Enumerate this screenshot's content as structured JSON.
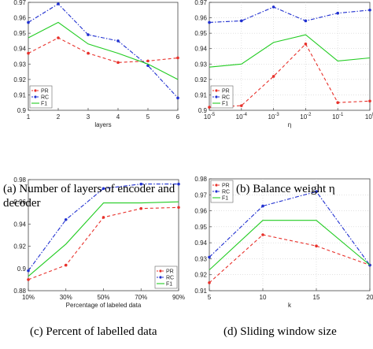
{
  "captions": [
    {
      "text": "(a) Number of layers of encoder and",
      "text2": "decoder"
    },
    {
      "text": "(b) Balance weight η",
      "text2": ""
    },
    {
      "text": "(c) Percent of labelled data",
      "text2": ""
    },
    {
      "text": "(d) Sliding window size",
      "text2": ""
    }
  ],
  "chart_data": [
    {
      "type": "line",
      "x": [
        1,
        2,
        3,
        4,
        5,
        6
      ],
      "xticks": [
        "1",
        "2",
        "3",
        "4",
        "5",
        "6"
      ],
      "xlabel": "layers",
      "ylim": [
        0.9,
        0.97
      ],
      "yticks": [
        "0.9",
        "0.91",
        "0.92",
        "0.93",
        "0.94",
        "0.95",
        "0.96",
        "0.97"
      ],
      "grid": false,
      "legend": "bottom-left",
      "series": [
        {
          "name": "PR",
          "color": "#e8302a",
          "dash": "dash",
          "marker": true,
          "values": [
            0.937,
            0.947,
            0.937,
            0.931,
            0.932,
            0.934
          ]
        },
        {
          "name": "RC",
          "color": "#1f2fd0",
          "dash": "dashdot",
          "marker": true,
          "values": [
            0.957,
            0.969,
            0.949,
            0.945,
            0.929,
            0.908
          ]
        },
        {
          "name": "F1",
          "color": "#22cc22",
          "dash": "solid",
          "marker": false,
          "values": [
            0.947,
            0.957,
            0.943,
            0.937,
            0.93,
            0.92
          ]
        }
      ]
    },
    {
      "type": "line",
      "x": [
        -5,
        -4,
        -3,
        -2,
        -1,
        0
      ],
      "xticks": [
        "10-5",
        "10-4",
        "10-3",
        "10-2",
        "10-1",
        "100"
      ],
      "xlabel": "η",
      "ylim": [
        0.9,
        0.97
      ],
      "yticks": [
        "0.9",
        "0.91",
        "0.92",
        "0.93",
        "0.94",
        "0.95",
        "0.96",
        "0.97"
      ],
      "grid": true,
      "legend": "bottom-left",
      "series": [
        {
          "name": "PR",
          "color": "#e8302a",
          "dash": "dash",
          "marker": true,
          "values": [
            0.902,
            0.903,
            0.922,
            0.943,
            0.905,
            0.906
          ]
        },
        {
          "name": "RC",
          "color": "#1f2fd0",
          "dash": "dashdot",
          "marker": true,
          "values": [
            0.957,
            0.958,
            0.967,
            0.958,
            0.963,
            0.965
          ]
        },
        {
          "name": "F1",
          "color": "#22cc22",
          "dash": "solid",
          "marker": false,
          "values": [
            0.928,
            0.93,
            0.944,
            0.949,
            0.932,
            0.934
          ]
        }
      ]
    },
    {
      "type": "line",
      "x": [
        10,
        30,
        50,
        70,
        90
      ],
      "xticks": [
        "10%",
        "30%",
        "50%",
        "70%",
        "90%"
      ],
      "xlabel": "Percentage of labeled data",
      "ylim": [
        0.88,
        0.98
      ],
      "yticks": [
        "0.88",
        "0.9",
        "0.92",
        "0.94",
        "0.96",
        "0.98"
      ],
      "grid": false,
      "legend": "bottom-right",
      "series": [
        {
          "name": "PR",
          "color": "#e8302a",
          "dash": "dash",
          "marker": true,
          "values": [
            0.89,
            0.903,
            0.946,
            0.954,
            0.955
          ]
        },
        {
          "name": "RC",
          "color": "#1f2fd0",
          "dash": "dashdot",
          "marker": true,
          "values": [
            0.898,
            0.944,
            0.972,
            0.976,
            0.976
          ]
        },
        {
          "name": "F1",
          "color": "#22cc22",
          "dash": "solid",
          "marker": false,
          "values": [
            0.893,
            0.922,
            0.959,
            0.959,
            0.96
          ]
        }
      ]
    },
    {
      "type": "line",
      "x": [
        5,
        10,
        15,
        20
      ],
      "xticks": [
        "5",
        "10",
        "15",
        "20"
      ],
      "xlabel": "k",
      "ylim": [
        0.91,
        0.98
      ],
      "yticks": [
        "0.91",
        "0.92",
        "0.93",
        "0.94",
        "0.95",
        "0.96",
        "0.97",
        "0.98"
      ],
      "grid": true,
      "legend": "top-left",
      "series": [
        {
          "name": "PR",
          "color": "#e8302a",
          "dash": "dash",
          "marker": true,
          "values": [
            0.915,
            0.945,
            0.938,
            0.926
          ]
        },
        {
          "name": "RC",
          "color": "#1f2fd0",
          "dash": "dashdot",
          "marker": true,
          "values": [
            0.931,
            0.963,
            0.972,
            0.926
          ]
        },
        {
          "name": "F1",
          "color": "#22cc22",
          "dash": "solid",
          "marker": false,
          "values": [
            0.923,
            0.954,
            0.954,
            0.926
          ]
        }
      ]
    }
  ]
}
